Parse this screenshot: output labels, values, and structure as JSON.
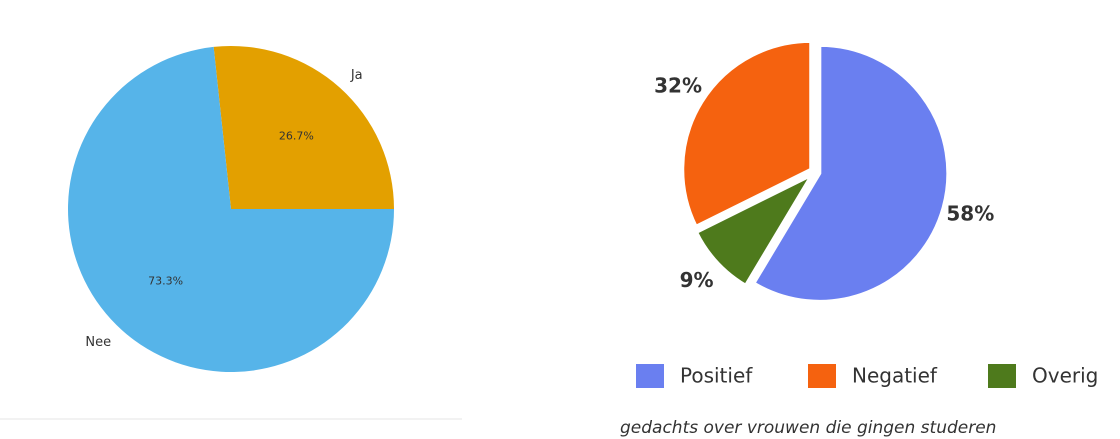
{
  "chart_data": [
    {
      "type": "pie",
      "categories": [
        "Ja",
        "Nee"
      ],
      "values": [
        26.7,
        73.3
      ],
      "value_labels": [
        "26.7%",
        "73.3%"
      ],
      "colors": [
        "#e3a000",
        "#56b4e9"
      ]
    },
    {
      "type": "pie",
      "categories": [
        "Positief",
        "Negatief",
        "Overig"
      ],
      "values": [
        58,
        32,
        9
      ],
      "value_labels": [
        "58%",
        "32%",
        "9%"
      ],
      "colors": [
        "#6a7ff0",
        "#f5620f",
        "#4e7a1c"
      ],
      "legend": "bottom",
      "caption": "gedachts over vrouwen die gingen studeren"
    }
  ]
}
